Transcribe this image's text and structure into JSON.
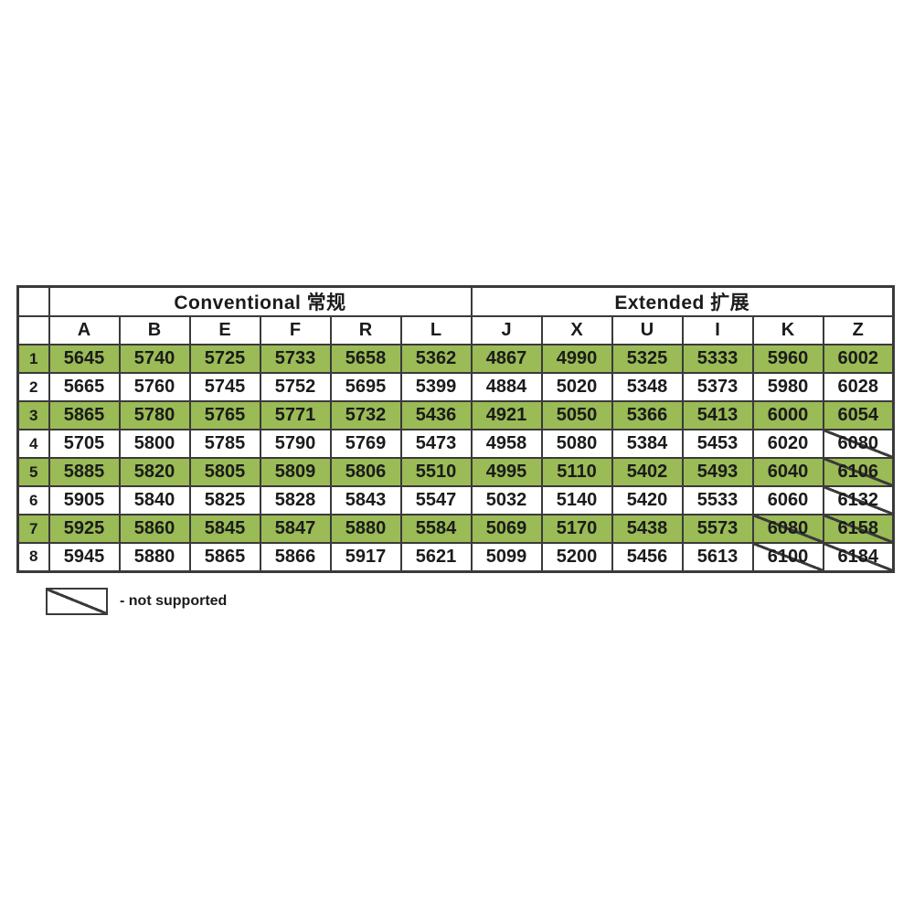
{
  "table": {
    "group_headers": [
      {
        "label": "Conventional 常规",
        "span": 6
      },
      {
        "label": "Extended 扩展",
        "span": 6
      }
    ],
    "columns": [
      "A",
      "B",
      "E",
      "F",
      "R",
      "L",
      "J",
      "X",
      "U",
      "I",
      "K",
      "Z"
    ],
    "rows": [
      {
        "label": "1",
        "highlighted": true,
        "values": [
          "5645",
          "5740",
          "5725",
          "5733",
          "5658",
          "5362",
          "4867",
          "4990",
          "5325",
          "5333",
          "5960",
          "6002"
        ],
        "not_supported": []
      },
      {
        "label": "2",
        "highlighted": false,
        "values": [
          "5665",
          "5760",
          "5745",
          "5752",
          "5695",
          "5399",
          "4884",
          "5020",
          "5348",
          "5373",
          "5980",
          "6028"
        ],
        "not_supported": []
      },
      {
        "label": "3",
        "highlighted": true,
        "values": [
          "5865",
          "5780",
          "5765",
          "5771",
          "5732",
          "5436",
          "4921",
          "5050",
          "5366",
          "5413",
          "6000",
          "6054"
        ],
        "not_supported": []
      },
      {
        "label": "4",
        "highlighted": false,
        "values": [
          "5705",
          "5800",
          "5785",
          "5790",
          "5769",
          "5473",
          "4958",
          "5080",
          "5384",
          "5453",
          "6020",
          "6080"
        ],
        "not_supported": [
          "Z"
        ]
      },
      {
        "label": "5",
        "highlighted": true,
        "values": [
          "5885",
          "5820",
          "5805",
          "5809",
          "5806",
          "5510",
          "4995",
          "5110",
          "5402",
          "5493",
          "6040",
          "6106"
        ],
        "not_supported": [
          "Z"
        ]
      },
      {
        "label": "6",
        "highlighted": false,
        "values": [
          "5905",
          "5840",
          "5825",
          "5828",
          "5843",
          "5547",
          "5032",
          "5140",
          "5420",
          "5533",
          "6060",
          "6132"
        ],
        "not_supported": [
          "Z"
        ]
      },
      {
        "label": "7",
        "highlighted": true,
        "values": [
          "5925",
          "5860",
          "5845",
          "5847",
          "5880",
          "5584",
          "5069",
          "5170",
          "5438",
          "5573",
          "6080",
          "6158"
        ],
        "not_supported": [
          "K",
          "Z"
        ]
      },
      {
        "label": "8",
        "highlighted": false,
        "values": [
          "5945",
          "5880",
          "5865",
          "5866",
          "5917",
          "5621",
          "5099",
          "5200",
          "5456",
          "5613",
          "6100",
          "6184"
        ],
        "not_supported": [
          "K",
          "Z"
        ]
      }
    ]
  },
  "legend": {
    "text": "-  not supported"
  },
  "colors": {
    "highlight_green": "#9abb55",
    "border": "#3a3a3a",
    "text": "#1b1b1b"
  }
}
